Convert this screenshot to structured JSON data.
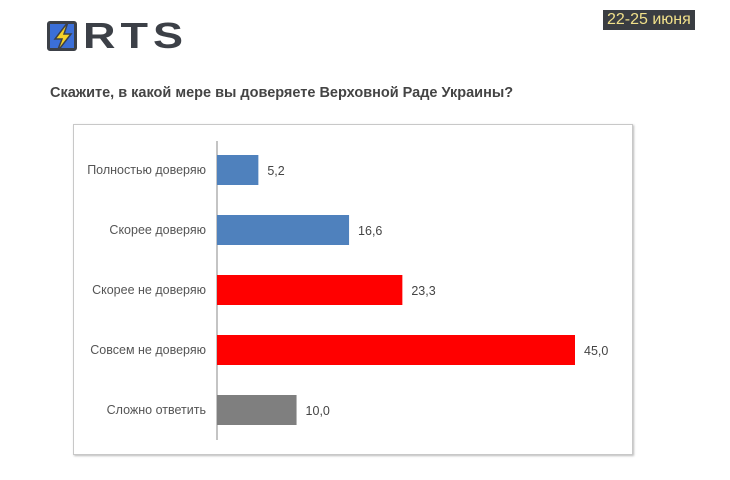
{
  "header": {
    "logo": "RTS",
    "date": "22-25 июня"
  },
  "chart_data": {
    "type": "bar",
    "orientation": "horizontal",
    "title": "Скажите, в какой мере вы доверяете Верховной Раде Украины?",
    "categories": [
      "Полностью доверяю",
      "Скорее доверяю",
      "Скорее не доверяю",
      "Совсем не доверяю",
      "Сложно ответить"
    ],
    "values": [
      5.2,
      16.6,
      23.3,
      45.0,
      10.0
    ],
    "value_labels": [
      "5,2",
      "16,6",
      "23,3",
      "45,0",
      "10,0"
    ],
    "colors": [
      "#4f81bd",
      "#4f81bd",
      "#ff0000",
      "#ff0000",
      "#7f7f7f"
    ],
    "xlim": [
      0,
      45
    ],
    "grid": false
  }
}
